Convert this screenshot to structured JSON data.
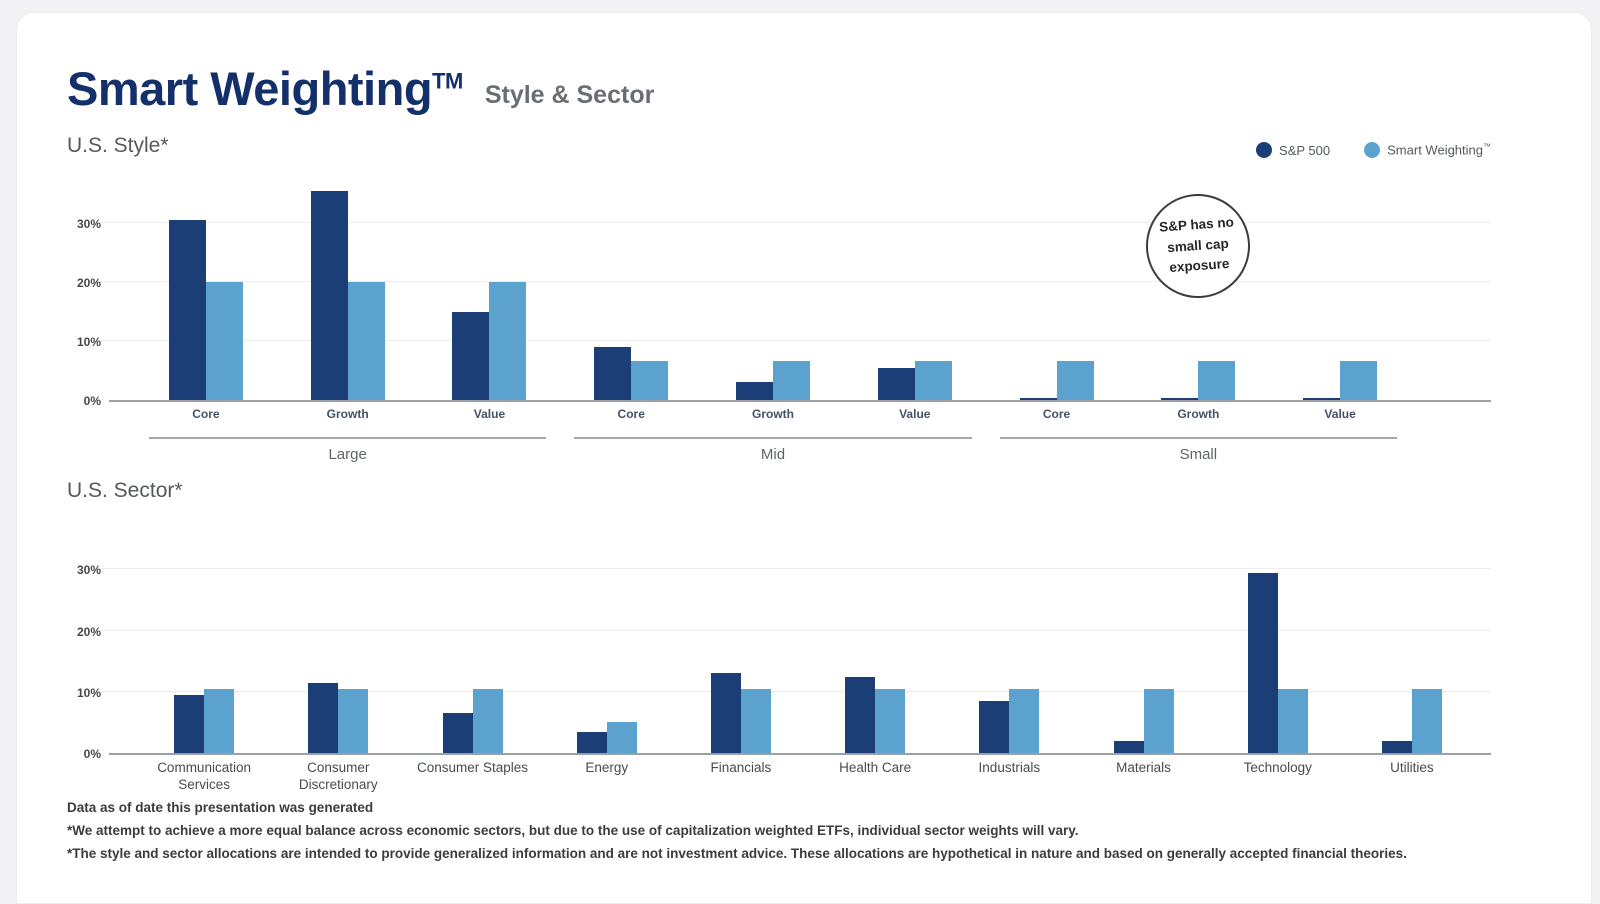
{
  "header": {
    "title": "Smart Weighting",
    "trademark": "TM",
    "subtitle": "Style & Sector"
  },
  "legend": {
    "items": [
      {
        "label": "S&P 500",
        "color": "#1c3e76"
      },
      {
        "label": "Smart Weighting",
        "tm": "™",
        "color": "#5ba3ce"
      }
    ]
  },
  "colors": {
    "sp500": "#1c3e76",
    "smart_weighting": "#5ba3ce",
    "title_navy": "#14306b"
  },
  "annotation": {
    "lines": [
      "S&P has no",
      "small cap",
      "exposure"
    ]
  },
  "chart_data": [
    {
      "type": "bar",
      "title": "U.S. Style*",
      "ylabel": "",
      "xlabel": "",
      "ylim": [
        0,
        37
      ],
      "ytick_labels": [
        "0%",
        "10%",
        "20%",
        "30%"
      ],
      "ytick_values": [
        0,
        10,
        20,
        30
      ],
      "grid": true,
      "legend_position": "top-right",
      "series_names": [
        "S&P 500",
        "Smart Weighting™"
      ],
      "colors": [
        "#1c3e76",
        "#5ba3ce"
      ],
      "annotation": "S&P has no small cap exposure",
      "groups": [
        {
          "label": "Large",
          "categories": [
            "Core",
            "Growth",
            "Value"
          ],
          "series": [
            {
              "name": "S&P 500",
              "values": [
                30.5,
                35.5,
                15
              ]
            },
            {
              "name": "Smart Weighting™",
              "values": [
                20,
                20,
                20
              ]
            }
          ]
        },
        {
          "label": "Mid",
          "categories": [
            "Core",
            "Growth",
            "Value"
          ],
          "series": [
            {
              "name": "S&P 500",
              "values": [
                9,
                3,
                5.5
              ]
            },
            {
              "name": "Smart Weighting™",
              "values": [
                6.7,
                6.7,
                6.7
              ]
            }
          ]
        },
        {
          "label": "Small",
          "categories": [
            "Core",
            "Growth",
            "Value"
          ],
          "series": [
            {
              "name": "S&P 500",
              "values": [
                0.3,
                0.3,
                0.3
              ]
            },
            {
              "name": "Smart Weighting™",
              "values": [
                6.7,
                6.7,
                6.7
              ]
            }
          ]
        }
      ]
    },
    {
      "type": "bar",
      "title": "U.S. Sector*",
      "ylabel": "",
      "xlabel": "",
      "ylim": [
        0,
        34
      ],
      "ytick_labels": [
        "0%",
        "10%",
        "20%",
        "30%"
      ],
      "ytick_values": [
        0,
        10,
        20,
        30
      ],
      "grid": true,
      "categories": [
        "Communication Services",
        "Consumer Discretionary",
        "Consumer Staples",
        "Energy",
        "Financials",
        "Health Care",
        "Industrials",
        "Materials",
        "Technology",
        "Utilities"
      ],
      "series": [
        {
          "name": "S&P 500",
          "values": [
            9.5,
            11.5,
            6.5,
            3.5,
            13,
            12.5,
            8.5,
            2,
            29.5,
            2
          ]
        },
        {
          "name": "Smart Weighting™",
          "values": [
            10.5,
            10.5,
            10.5,
            5,
            10.5,
            10.5,
            10.5,
            10.5,
            10.5,
            10.5
          ]
        }
      ],
      "colors": [
        "#1c3e76",
        "#5ba3ce"
      ]
    }
  ],
  "footnotes": [
    "Data as of date this presentation was generated",
    "*We attempt to achieve a more equal balance across economic sectors, but due to the use of capitalization weighted ETFs, individual sector weights will vary.",
    "*The style and sector allocations are intended to provide generalized information and are not investment advice. These allocations are hypothetical in nature and based on generally accepted financial theories."
  ]
}
